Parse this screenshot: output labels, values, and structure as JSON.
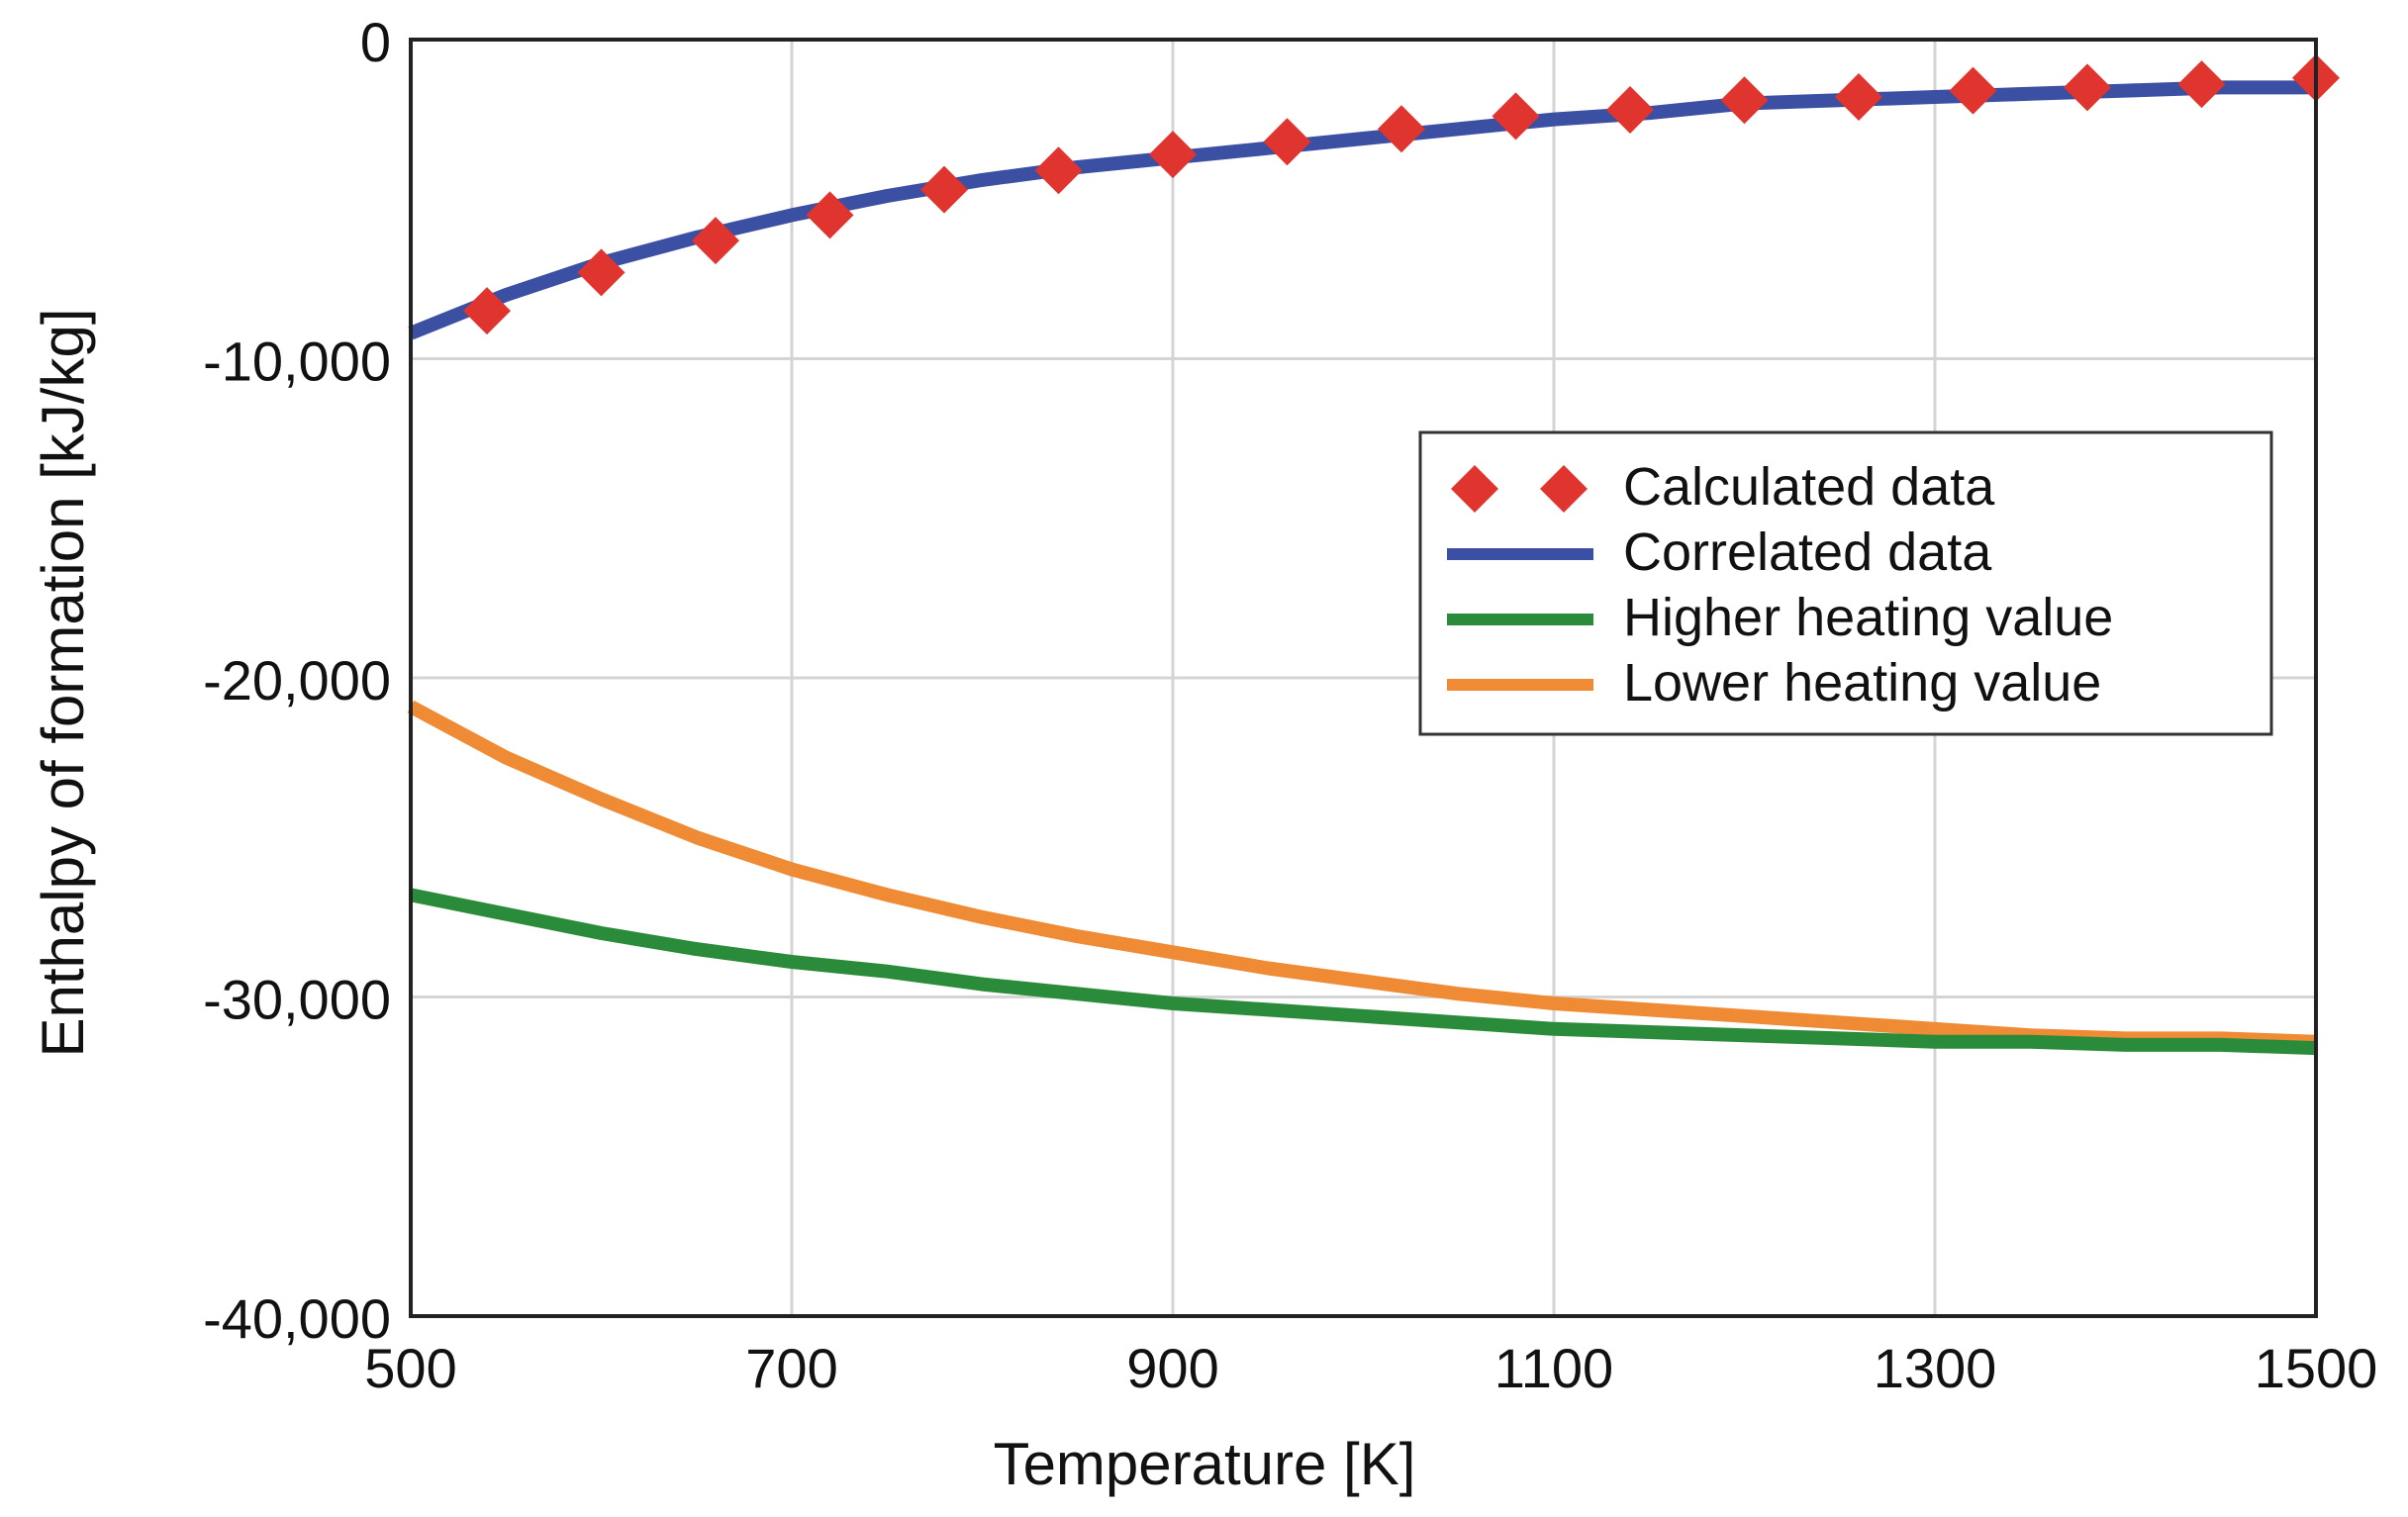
{
  "chart_data": {
    "type": "line",
    "title": "",
    "xlabel": "Temperature [K]",
    "ylabel": "Enthalpy of formation [kJ/kg]",
    "xlim": [
      500,
      1500
    ],
    "ylim": [
      -40000,
      0
    ],
    "grid": true,
    "legend_position": "right",
    "x_ticks": [
      500,
      700,
      900,
      1100,
      1300,
      1500
    ],
    "x_tick_labels": [
      "500",
      "700",
      "900",
      "1100",
      "1300",
      "1500"
    ],
    "y_ticks": [
      0,
      -10000,
      -20000,
      -30000,
      -40000
    ],
    "y_tick_labels": [
      "0",
      "-10,000",
      "-20,000",
      "-30,000",
      "-40,000"
    ],
    "series": [
      {
        "name": "Calculated data",
        "style": "markers",
        "marker": "diamond",
        "color": "#e0342e",
        "x": [
          540,
          600,
          660,
          720,
          780,
          840,
          900,
          960,
          1020,
          1080,
          1140,
          1200,
          1260,
          1320,
          1380,
          1440,
          1500
        ],
        "y": [
          -8500,
          -7300,
          -6300,
          -5500,
          -4700,
          -4100,
          -3600,
          -3200,
          -2800,
          -2400,
          -2200,
          -1900,
          -1800,
          -1600,
          -1500,
          -1400,
          -1200
        ]
      },
      {
        "name": "Correlated data",
        "style": "line",
        "color": "#3b4fa3",
        "x": [
          500,
          550,
          600,
          650,
          700,
          750,
          800,
          850,
          900,
          950,
          1000,
          1050,
          1100,
          1150,
          1200,
          1250,
          1300,
          1350,
          1400,
          1450,
          1500
        ],
        "y": [
          -9200,
          -8000,
          -7000,
          -6200,
          -5500,
          -4900,
          -4400,
          -4000,
          -3700,
          -3400,
          -3100,
          -2800,
          -2500,
          -2300,
          -2000,
          -1900,
          -1800,
          -1700,
          -1600,
          -1500,
          -1500
        ]
      },
      {
        "name": "Higher heating value",
        "style": "line",
        "color": "#2a8c3a",
        "x": [
          500,
          550,
          600,
          650,
          700,
          750,
          800,
          850,
          900,
          950,
          1000,
          1050,
          1100,
          1150,
          1200,
          1250,
          1300,
          1350,
          1400,
          1450,
          1500
        ],
        "y": [
          -26800,
          -27400,
          -28000,
          -28500,
          -28900,
          -29200,
          -29600,
          -29900,
          -30200,
          -30400,
          -30600,
          -30800,
          -31000,
          -31100,
          -31200,
          -31300,
          -31400,
          -31400,
          -31500,
          -31500,
          -31600
        ]
      },
      {
        "name": "Lower heating value",
        "style": "line",
        "color": "#ef8a35",
        "x": [
          500,
          550,
          600,
          650,
          700,
          750,
          800,
          850,
          900,
          950,
          1000,
          1050,
          1100,
          1150,
          1200,
          1250,
          1300,
          1350,
          1400,
          1450,
          1500
        ],
        "y": [
          -20900,
          -22500,
          -23800,
          -25000,
          -26000,
          -26800,
          -27500,
          -28100,
          -28600,
          -29100,
          -29500,
          -29900,
          -30200,
          -30400,
          -30600,
          -30800,
          -31000,
          -31200,
          -31300,
          -31300,
          -31400
        ]
      }
    ]
  }
}
